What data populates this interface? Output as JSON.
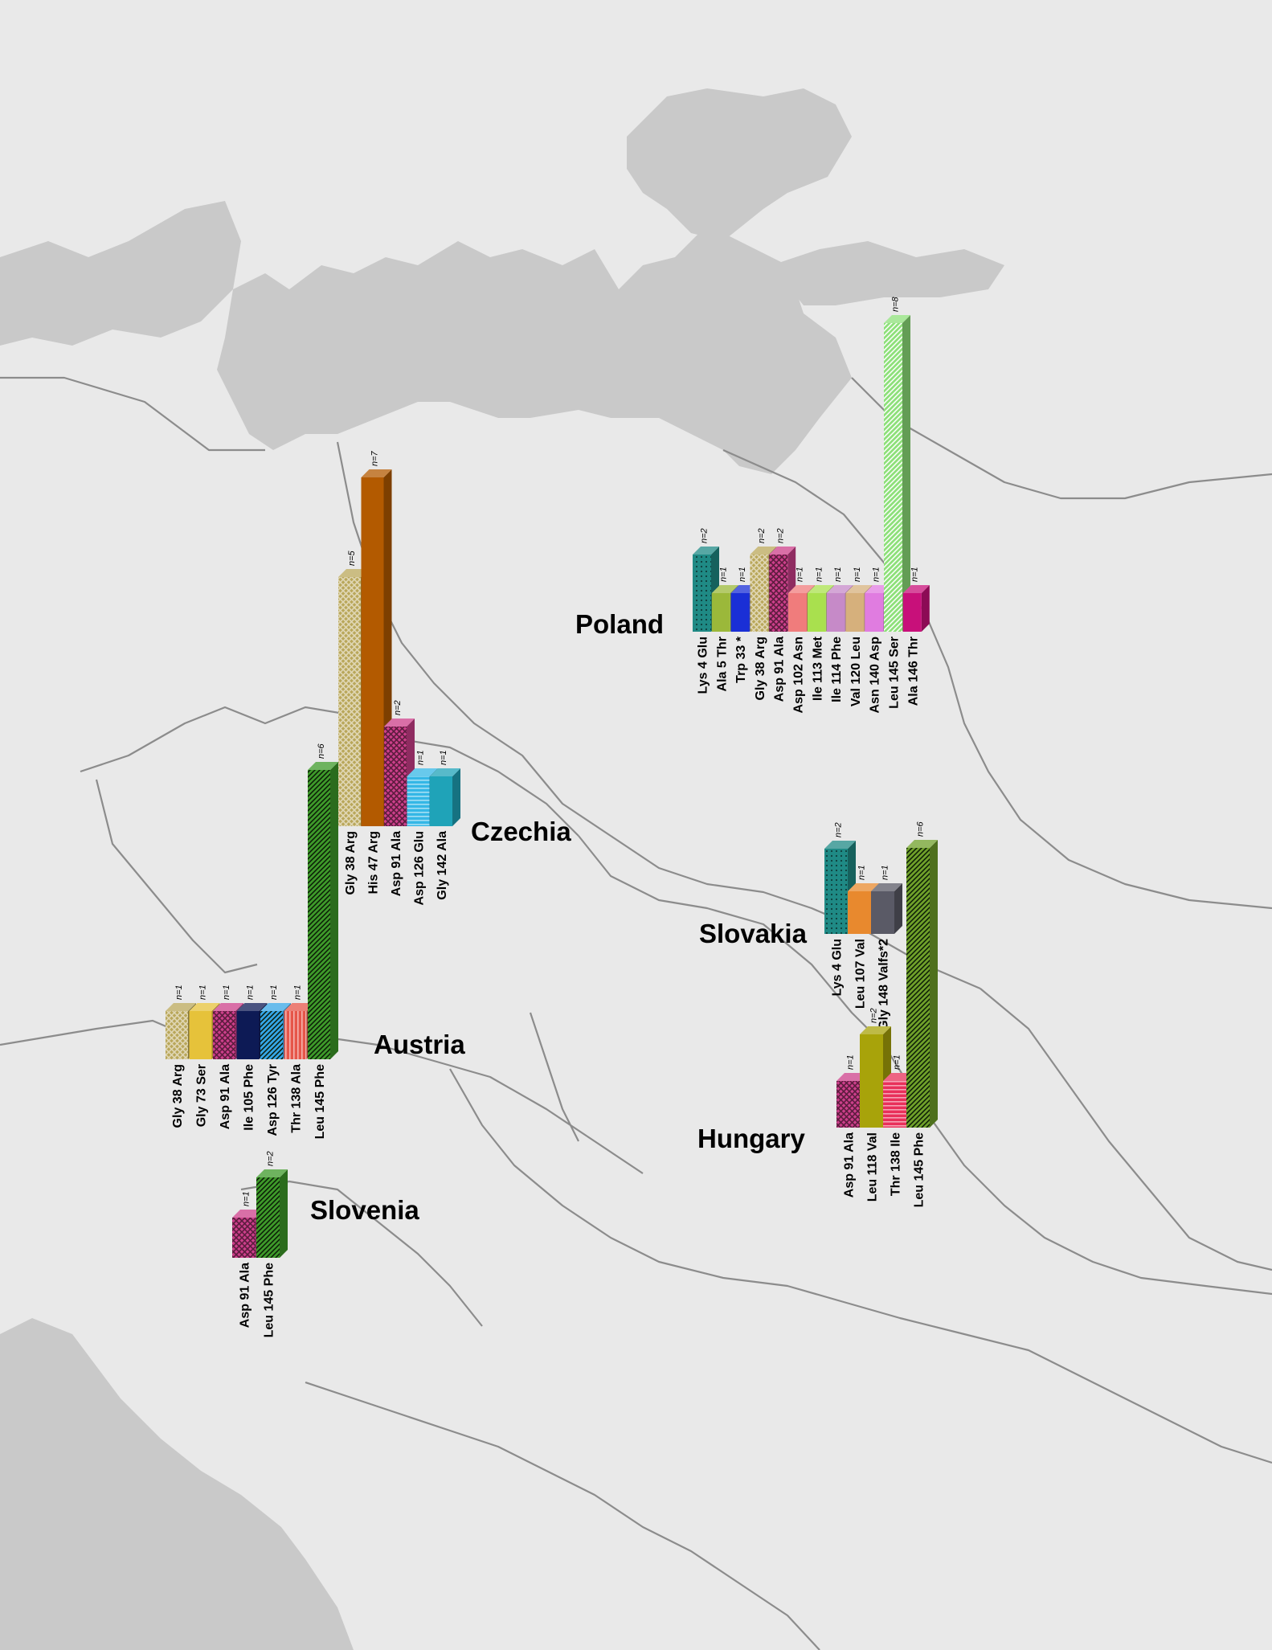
{
  "colors": {
    "land": "#e9e9e9",
    "sea": "#c9c9c9",
    "border": "#8c8c8c"
  },
  "chart_data": {
    "type": "bar",
    "value_prefix": "n=",
    "groups": [
      {
        "country": "Poland",
        "bars": [
          {
            "mutation": "Lys 4 Glu",
            "n": 2,
            "color": "#1f8a85",
            "pattern": "dots"
          },
          {
            "mutation": "Ala 5 Thr",
            "n": 1,
            "color": "#9bb83a",
            "pattern": "none"
          },
          {
            "mutation": "Trp 33 *",
            "n": 1,
            "color": "#1a2fd6",
            "pattern": "none"
          },
          {
            "mutation": "Gly 38 Arg",
            "n": 2,
            "color": "#b9a75a",
            "pattern": "cross"
          },
          {
            "mutation": "Asp 91 Ala",
            "n": 2,
            "color": "#cc3f8a",
            "pattern": "cross-dark"
          },
          {
            "mutation": "Asp 102 Asn",
            "n": 1,
            "color": "#f07c7c",
            "pattern": "none"
          },
          {
            "mutation": "Ile 113 Met",
            "n": 1,
            "color": "#a9e04e",
            "pattern": "none"
          },
          {
            "mutation": "Ile 114 Phe",
            "n": 1,
            "color": "#c68ac8",
            "pattern": "none"
          },
          {
            "mutation": "Val 120 Leu",
            "n": 1,
            "color": "#d6b07c",
            "pattern": "none"
          },
          {
            "mutation": "Asn 140 Asp",
            "n": 1,
            "color": "#e07ce0",
            "pattern": "none"
          },
          {
            "mutation": "Leu 145 Ser",
            "n": 8,
            "color": "#8ee07a",
            "pattern": "diag-light"
          },
          {
            "mutation": "Ala 146 Thr",
            "n": 1,
            "color": "#c8107a",
            "pattern": "none"
          }
        ]
      },
      {
        "country": "Czechia",
        "bars": [
          {
            "mutation": "Gly 38 Arg",
            "n": 5,
            "color": "#b9a75a",
            "pattern": "cross"
          },
          {
            "mutation": "His 47 Arg",
            "n": 7,
            "color": "#b35a00",
            "pattern": "none"
          },
          {
            "mutation": "Asp 91 Ala",
            "n": 2,
            "color": "#cc3f8a",
            "pattern": "cross-dark"
          },
          {
            "mutation": "Asp 126 Glu",
            "n": 1,
            "color": "#35b7e6",
            "pattern": "hstripe"
          },
          {
            "mutation": "Gly 142 Ala",
            "n": 1,
            "color": "#1fa3b8",
            "pattern": "none"
          }
        ]
      },
      {
        "country": "Austria",
        "bars": [
          {
            "mutation": "Gly 38 Arg",
            "n": 1,
            "color": "#b9a75a",
            "pattern": "cross"
          },
          {
            "mutation": "Gly 73 Ser",
            "n": 1,
            "color": "#e6c23a",
            "pattern": "none"
          },
          {
            "mutation": "Asp 91 Ala",
            "n": 1,
            "color": "#cc3f8a",
            "pattern": "cross-dark"
          },
          {
            "mutation": "Ile 105 Phe",
            "n": 1,
            "color": "#0d1a55",
            "pattern": "none"
          },
          {
            "mutation": "Asp 126 Tyr",
            "n": 1,
            "color": "#35a6e6",
            "pattern": "diag-dark"
          },
          {
            "mutation": "Thr 138 Ala",
            "n": 1,
            "color": "#e6564a",
            "pattern": "vstripe"
          },
          {
            "mutation": "Leu 145 Phe",
            "n": 6,
            "color": "#3e9a2a",
            "pattern": "diag-dark"
          }
        ]
      },
      {
        "country": "Slovenia",
        "bars": [
          {
            "mutation": "Asp 91 Ala",
            "n": 1,
            "color": "#cc3f8a",
            "pattern": "cross-dark"
          },
          {
            "mutation": "Leu 145 Phe",
            "n": 2,
            "color": "#3e9a2a",
            "pattern": "diag-dark"
          }
        ]
      },
      {
        "country": "Slovakia",
        "bars": [
          {
            "mutation": "Lys 4 Glu",
            "n": 2,
            "color": "#1f8a85",
            "pattern": "dots"
          },
          {
            "mutation": "Leu 107 Val",
            "n": 1,
            "color": "#e8892e",
            "pattern": "none"
          },
          {
            "mutation": "Gly 148 Valfs*2",
            "n": 1,
            "color": "#5a5a66",
            "pattern": "none"
          }
        ]
      },
      {
        "country": "Hungary",
        "bars": [
          {
            "mutation": "Asp 91 Ala",
            "n": 1,
            "color": "#cc3f8a",
            "pattern": "cross-dark"
          },
          {
            "mutation": "Leu 118 Val",
            "n": 2,
            "color": "#a8a30a",
            "pattern": "none"
          },
          {
            "mutation": "Thr 138 Ile",
            "n": 1,
            "color": "#e8305a",
            "pattern": "hstripe"
          },
          {
            "mutation": "Leu 145 Phe",
            "n": 6,
            "color": "#6fa02a",
            "pattern": "diag-dark"
          }
        ]
      }
    ]
  }
}
